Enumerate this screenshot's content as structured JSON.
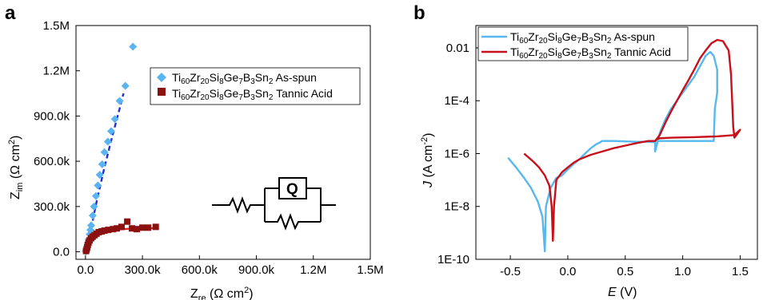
{
  "panels": {
    "a": {
      "label": "a",
      "ylabel_main": "Z",
      "ylabel_sub": "im",
      "ylabel_unit": " (Ω cm",
      "ylabel_sup": "2",
      "ylabel_close": ")",
      "xlabel_main": "Z",
      "xlabel_sub": "re",
      "xlabel_unit": " (Ω cm",
      "xlabel_sup": "2",
      "xlabel_close": ")",
      "circuit_element": "Q"
    },
    "b": {
      "label": "b",
      "ylabel_main": "J",
      "ylabel_unit": " (A cm",
      "ylabel_sup": "-2",
      "ylabel_close": ")",
      "xlabel_main": "E",
      "xlabel_unit": " (V)"
    }
  },
  "legend": {
    "formula_parts": [
      "Ti",
      "60",
      "Zr",
      "20",
      "Si",
      "8",
      "Ge",
      "7",
      "B",
      "3",
      "Sn",
      "2"
    ],
    "as_spun_suffix": " As-spun",
    "tannic_suffix": " Tannic Acid"
  },
  "colors": {
    "as_spun_marker": "#5ab4f0",
    "as_spun_fit": "#1f2fd6",
    "tannic_marker": "#8b1010",
    "tannic_fit": "#e02020",
    "as_spun_line": "#56b8ee",
    "tannic_line": "#c8101a"
  },
  "chart_data": [
    {
      "type": "scatter",
      "panel": "a",
      "xlim": [
        -50000,
        1500000
      ],
      "ylim": [
        -50000,
        1500000
      ],
      "x_ticks": [
        0,
        300000,
        600000,
        900000,
        1200000,
        1500000
      ],
      "x_tick_labels": [
        "0.0",
        "300.0k",
        "600.0k",
        "900.0k",
        "1.2M",
        "1.5M"
      ],
      "y_ticks": [
        0,
        300000,
        600000,
        900000,
        1200000,
        1500000
      ],
      "y_tick_labels": [
        "0.0",
        "300.0k",
        "600.0k",
        "900.0k",
        "1.2M",
        "1.5M"
      ],
      "legend_position": "top-right",
      "series": [
        {
          "key": "as_spun",
          "marker": "diamond",
          "points": [
            [
              2000,
              2000
            ],
            [
              4000,
              8000
            ],
            [
              6000,
              15000
            ],
            [
              8000,
              25000
            ],
            [
              10000,
              40000
            ],
            [
              14000,
              60000
            ],
            [
              18000,
              85000
            ],
            [
              22000,
              115000
            ],
            [
              26000,
              145000
            ],
            [
              30000,
              175000
            ],
            [
              38000,
              240000
            ],
            [
              45000,
              300000
            ],
            [
              55000,
              370000
            ],
            [
              65000,
              440000
            ],
            [
              75000,
              510000
            ],
            [
              88000,
              580000
            ],
            [
              100000,
              660000
            ],
            [
              118000,
              730000
            ],
            [
              135000,
              800000
            ],
            [
              155000,
              880000
            ],
            [
              180000,
              1000000
            ],
            [
              210000,
              1100000
            ],
            [
              250000,
              1360000
            ]
          ],
          "fit": [
            [
              0,
              0
            ],
            [
              30000,
              160000
            ],
            [
              60000,
              340000
            ],
            [
              100000,
              560000
            ],
            [
              140000,
              760000
            ],
            [
              180000,
              950000
            ],
            [
              200000,
              1050000
            ]
          ]
        },
        {
          "key": "tannic",
          "marker": "square",
          "points": [
            [
              3000,
              5000
            ],
            [
              6000,
              15000
            ],
            [
              9000,
              30000
            ],
            [
              12000,
              45000
            ],
            [
              16000,
              60000
            ],
            [
              22000,
              75000
            ],
            [
              30000,
              90000
            ],
            [
              38000,
              100000
            ],
            [
              48000,
              110000
            ],
            [
              58000,
              120000
            ],
            [
              70000,
              130000
            ],
            [
              85000,
              135000
            ],
            [
              100000,
              140000
            ],
            [
              120000,
              145000
            ],
            [
              145000,
              150000
            ],
            [
              165000,
              155000
            ],
            [
              190000,
              165000
            ],
            [
              220000,
              200000
            ],
            [
              245000,
              155000
            ],
            [
              270000,
              150000
            ],
            [
              300000,
              160000
            ],
            [
              330000,
              160000
            ],
            [
              370000,
              165000
            ]
          ],
          "fit": [
            [
              0,
              0
            ],
            [
              20000,
              60000
            ],
            [
              50000,
              105000
            ],
            [
              90000,
              130000
            ],
            [
              140000,
              145000
            ],
            [
              200000,
              150000
            ],
            [
              260000,
              155000
            ],
            [
              320000,
              155000
            ],
            [
              380000,
              158000
            ]
          ]
        }
      ]
    },
    {
      "type": "line",
      "panel": "b",
      "y_scale": "log",
      "xlim": [
        -0.8,
        1.65
      ],
      "ylim": [
        1e-10,
        0.07
      ],
      "x_ticks": [
        -0.5,
        0.0,
        0.5,
        1.0,
        1.5
      ],
      "x_tick_labels": [
        "-0.5",
        "0.0",
        "0.5",
        "1.0",
        "1.5"
      ],
      "y_ticks": [
        1e-10,
        1e-08,
        1e-06,
        0.0001,
        0.01
      ],
      "y_tick_labels": [
        "1E-10",
        "1E-8",
        "1E-6",
        "1E-4",
        "0.01"
      ],
      "legend_position": "top",
      "series": [
        {
          "key": "as_spun",
          "points": [
            [
              -0.52,
              7e-07
            ],
            [
              -0.45,
              3e-07
            ],
            [
              -0.38,
              1.2e-07
            ],
            [
              -0.32,
              5e-08
            ],
            [
              -0.26,
              1.5e-08
            ],
            [
              -0.22,
              4e-09
            ],
            [
              -0.2,
              2e-10
            ],
            [
              -0.19,
              1e-08
            ],
            [
              -0.15,
              5e-08
            ],
            [
              -0.1,
              1.2e-07
            ],
            [
              -0.05,
              1.5e-07
            ],
            [
              0.0,
              2.5e-07
            ],
            [
              0.05,
              4e-07
            ],
            [
              0.1,
              6e-07
            ],
            [
              0.15,
              1e-06
            ],
            [
              0.2,
              1.6e-06
            ],
            [
              0.25,
              2.3e-06
            ],
            [
              0.27,
              2.5e-06
            ],
            [
              0.3,
              3e-06
            ],
            [
              0.4,
              3e-06
            ],
            [
              0.5,
              2.9e-06
            ],
            [
              0.6,
              2.8e-06
            ],
            [
              0.7,
              2.8e-06
            ],
            [
              0.76,
              2.7e-06
            ],
            [
              0.76,
              1.2e-06
            ],
            [
              0.8,
              6e-06
            ],
            [
              0.85,
              2e-05
            ],
            [
              0.9,
              5e-05
            ],
            [
              0.95,
              0.0001
            ],
            [
              1.0,
              0.0002
            ],
            [
              1.05,
              0.0004
            ],
            [
              1.1,
              0.0008
            ],
            [
              1.15,
              0.002
            ],
            [
              1.2,
              0.005
            ],
            [
              1.24,
              0.007
            ],
            [
              1.27,
              0.005
            ],
            [
              1.3,
              0.0015
            ],
            [
              1.3,
              0.0002
            ],
            [
              1.28,
              5e-05
            ],
            [
              1.27,
              3e-06
            ],
            [
              1.2,
              3e-06
            ],
            [
              1.1,
              3e-06
            ],
            [
              1.0,
              3e-06
            ],
            [
              0.9,
              3e-06
            ],
            [
              0.8,
              3e-06
            ],
            [
              0.76,
              3e-06
            ]
          ]
        },
        {
          "key": "tannic",
          "points": [
            [
              -0.38,
              1e-06
            ],
            [
              -0.3,
              5e-07
            ],
            [
              -0.25,
              3e-07
            ],
            [
              -0.2,
              1.5e-07
            ],
            [
              -0.16,
              6e-08
            ],
            [
              -0.14,
              1e-08
            ],
            [
              -0.13,
              5e-10
            ],
            [
              -0.12,
              1e-08
            ],
            [
              -0.1,
              1e-07
            ],
            [
              -0.05,
              2e-07
            ],
            [
              0.0,
              3e-07
            ],
            [
              0.05,
              4.5e-07
            ],
            [
              0.1,
              6e-07
            ],
            [
              0.2,
              9e-07
            ],
            [
              0.3,
              1.2e-06
            ],
            [
              0.4,
              1.6e-06
            ],
            [
              0.5,
              2e-06
            ],
            [
              0.6,
              2.5e-06
            ],
            [
              0.7,
              3e-06
            ],
            [
              0.76,
              3e-06
            ],
            [
              0.8,
              5e-06
            ],
            [
              0.85,
              1.5e-05
            ],
            [
              0.9,
              4e-05
            ],
            [
              0.95,
              0.0001
            ],
            [
              1.0,
              0.00025
            ],
            [
              1.05,
              0.0006
            ],
            [
              1.1,
              0.0015
            ],
            [
              1.15,
              0.004
            ],
            [
              1.2,
              0.008
            ],
            [
              1.25,
              0.015
            ],
            [
              1.3,
              0.02
            ],
            [
              1.35,
              0.018
            ],
            [
              1.4,
              0.008
            ],
            [
              1.42,
              0.001
            ],
            [
              1.43,
              0.0001
            ],
            [
              1.44,
              1e-05
            ],
            [
              1.45,
              4e-06
            ],
            [
              1.48,
              6e-06
            ],
            [
              1.5,
              8e-06
            ],
            [
              1.45,
              5e-06
            ],
            [
              1.3,
              4.5e-06
            ],
            [
              1.1,
              4.2e-06
            ],
            [
              0.9,
              4e-06
            ],
            [
              0.8,
              3.8e-06
            ],
            [
              0.77,
              3.5e-06
            ]
          ]
        }
      ]
    }
  ]
}
